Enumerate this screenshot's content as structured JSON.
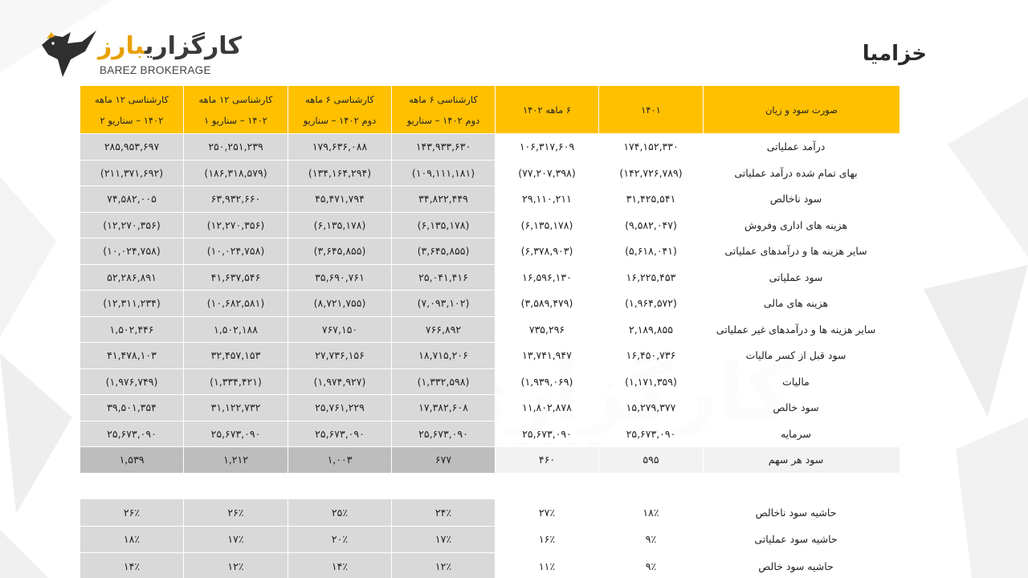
{
  "logo": {
    "fa_main": "کارگزاری",
    "fa_accent": "بارز",
    "en": "BAREZ BROKERAGE"
  },
  "page_title": "خزامیا",
  "watermark": {
    "fa": "کارگزاری بارز",
    "en": "BAREZ BROKERAGE"
  },
  "colors": {
    "header": "#ffc000",
    "estimate_bg": "#d9d9d9",
    "negative": "#c00000",
    "eps": "#00a651"
  },
  "table": {
    "headers": {
      "label": "صورت سود و زیان",
      "h1401": "۱۴۰۱",
      "h6m1402": "۶ ماهه ۱۴۰۲",
      "s6m_a_1": "کارشناسی ۶ ماهه",
      "s6m_a_2": "دوم ۱۴۰۲ – سناریو",
      "s6m_b_1": "کارشناسی ۶ ماهه",
      "s6m_b_2": "دوم ۱۴۰۲ – سناریو",
      "s12_1_1": "کارشناسی ۱۲ ماهه",
      "s12_1_2": "۱۴۰۲ – سناریو ۱",
      "s12_2_1": "کارشناسی ۱۲ ماهه",
      "s12_2_2": "۱۴۰۲ – سناریو ۲"
    },
    "rows": [
      {
        "label": "درآمد عملیاتی",
        "v": [
          "۱۷۴,۱۵۲,۳۳۰",
          "۱۰۶,۳۱۷,۶۰۹",
          "۱۴۳,۹۳۳,۶۳۰",
          "۱۷۹,۶۳۶,۰۸۸",
          "۲۵۰,۲۵۱,۲۳۹",
          "۲۸۵,۹۵۳,۶۹۷"
        ]
      },
      {
        "label": "بهای تمام شده درآمد عملیاتی",
        "v": [
          "(۱۴۲,۷۲۶,۷۸۹)",
          "(۷۷,۲۰۷,۳۹۸)",
          "(۱۰۹,۱۱۱,۱۸۱)",
          "(۱۳۴,۱۶۴,۲۹۴)",
          "(۱۸۶,۳۱۸,۵۷۹)",
          "(۲۱۱,۳۷۱,۶۹۲)"
        ]
      },
      {
        "label": "سود ناخالص",
        "v": [
          "۳۱,۴۲۵,۵۴۱",
          "۲۹,۱۱۰,۲۱۱",
          "۳۴,۸۲۲,۴۴۹",
          "۴۵,۴۷۱,۷۹۴",
          "۶۳,۹۳۲,۶۶۰",
          "۷۴,۵۸۲,۰۰۵"
        ]
      },
      {
        "label": "هزینه های اداری وفروش",
        "v": [
          "(۹,۵۸۲,۰۴۷)",
          "(۶,۱۳۵,۱۷۸)",
          "(۶,۱۳۵,۱۷۸)",
          "(۶,۱۳۵,۱۷۸)",
          "(۱۲,۲۷۰,۳۵۶)",
          "(۱۲,۲۷۰,۳۵۶)"
        ]
      },
      {
        "label": "سایر هزینه ها و درآمدهای عملیاتی",
        "v": [
          "(۵,۶۱۸,۰۴۱)",
          "(۶,۳۷۸,۹۰۳)",
          "(۳,۶۴۵,۸۵۵)",
          "(۳,۶۴۵,۸۵۵)",
          "(۱۰,۰۲۴,۷۵۸)",
          "(۱۰,۰۲۴,۷۵۸)"
        ]
      },
      {
        "label": "سود عملیاتی",
        "v": [
          "۱۶,۲۲۵,۴۵۳",
          "۱۶,۵۹۶,۱۳۰",
          "۲۵,۰۴۱,۴۱۶",
          "۳۵,۶۹۰,۷۶۱",
          "۴۱,۶۳۷,۵۴۶",
          "۵۲,۲۸۶,۸۹۱"
        ]
      },
      {
        "label": "هزینه های مالی",
        "v": [
          "(۱,۹۶۴,۵۷۲)",
          "(۳,۵۸۹,۴۷۹)",
          "(۷,۰۹۳,۱۰۲)",
          "(۸,۷۲۱,۷۵۵)",
          "(۱۰,۶۸۲,۵۸۱)",
          "(۱۲,۳۱۱,۲۳۴)"
        ]
      },
      {
        "label": "سایر هزینه ها و درآمدهای غیر عملیاتی",
        "v": [
          "۲,۱۸۹,۸۵۵",
          "۷۳۵,۲۹۶",
          "۷۶۶,۸۹۲",
          "۷۶۷,۱۵۰",
          "۱,۵۰۲,۱۸۸",
          "۱,۵۰۲,۴۴۶"
        ]
      },
      {
        "label": "سود قبل از کسر مالیات",
        "v": [
          "۱۶,۴۵۰,۷۳۶",
          "۱۳,۷۴۱,۹۴۷",
          "۱۸,۷۱۵,۲۰۶",
          "۲۷,۷۳۶,۱۵۶",
          "۳۲,۴۵۷,۱۵۳",
          "۴۱,۴۷۸,۱۰۳"
        ]
      },
      {
        "label": "مالیات",
        "v": [
          "(۱,۱۷۱,۳۵۹)",
          "(۱,۹۳۹,۰۶۹)",
          "(۱,۳۳۲,۵۹۸)",
          "(۱,۹۷۴,۹۲۷)",
          "(۱,۳۳۴,۴۲۱)",
          "(۱,۹۷۶,۷۴۹)"
        ]
      },
      {
        "label": "سود خالص",
        "v": [
          "۱۵,۲۷۹,۳۷۷",
          "۱۱,۸۰۲,۸۷۸",
          "۱۷,۳۸۲,۶۰۸",
          "۲۵,۷۶۱,۲۲۹",
          "۳۱,۱۲۲,۷۳۲",
          "۳۹,۵۰۱,۳۵۴"
        ]
      },
      {
        "label": "سرمایه",
        "v": [
          "۲۵,۶۷۳,۰۹۰",
          "۲۵,۶۷۳,۰۹۰",
          "۲۵,۶۷۳,۰۹۰",
          "۲۵,۶۷۳,۰۹۰",
          "۲۵,۶۷۳,۰۹۰",
          "۲۵,۶۷۳,۰۹۰"
        ]
      },
      {
        "label": "سود هر سهم",
        "v": [
          "۵۹۵",
          "۴۶۰",
          "۶۷۷",
          "۱,۰۰۳",
          "۱,۲۱۲",
          "۱,۵۳۹"
        ]
      }
    ],
    "ratios": [
      {
        "label": "حاشیه سود ناخالص",
        "v": [
          "۱۸٪",
          "۲۷٪",
          "۲۴٪",
          "۲۵٪",
          "۲۶٪",
          "۲۶٪"
        ]
      },
      {
        "label": "حاشیه سود عملیاتی",
        "v": [
          "۹٪",
          "۱۶٪",
          "۱۷٪",
          "۲۰٪",
          "۱۷٪",
          "۱۸٪"
        ]
      },
      {
        "label": "حاشیه سود خالص",
        "v": [
          "۹٪",
          "۱۱٪",
          "۱۲٪",
          "۱۴٪",
          "۱۲٪",
          "۱۴٪"
        ]
      }
    ]
  }
}
